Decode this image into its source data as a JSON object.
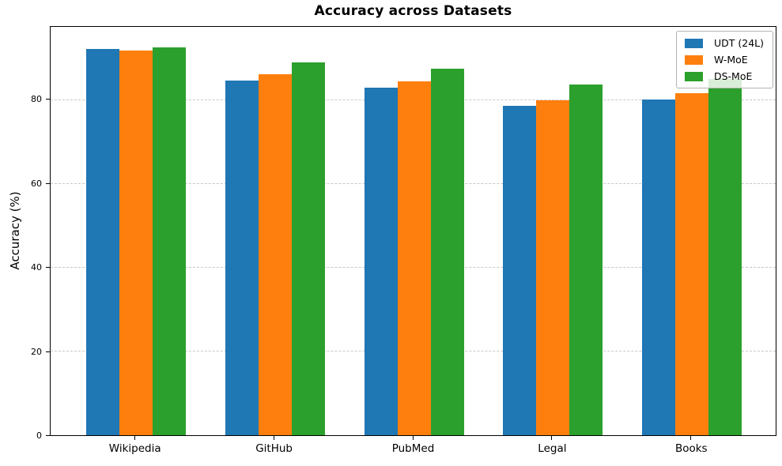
{
  "chart_data": {
    "type": "bar",
    "title": "Accuracy across Datasets",
    "xlabel": "",
    "ylabel": "Accuracy (%)",
    "categories": [
      "Wikipedia",
      "GitHub",
      "PubMed",
      "Legal",
      "Books"
    ],
    "series": [
      {
        "name": "UDT (24L)",
        "color": "#1f77b4",
        "values": [
          92.2,
          84.7,
          83.0,
          78.6,
          80.2
        ]
      },
      {
        "name": "W-MoE",
        "color": "#ff7f0e",
        "values": [
          91.8,
          86.2,
          84.4,
          80.0,
          81.6
        ]
      },
      {
        "name": "DS-MoE",
        "color": "#2ca02c",
        "values": [
          92.6,
          89.0,
          87.5,
          83.8,
          85.0
        ]
      }
    ],
    "yticks": [
      0,
      20,
      40,
      60,
      80
    ],
    "ylim": [
      0,
      97.5
    ],
    "grid": "horizontal-dashed",
    "legend_position": "upper-right",
    "spine_color": "#000000",
    "gridline_color": "#c8c8c8"
  }
}
